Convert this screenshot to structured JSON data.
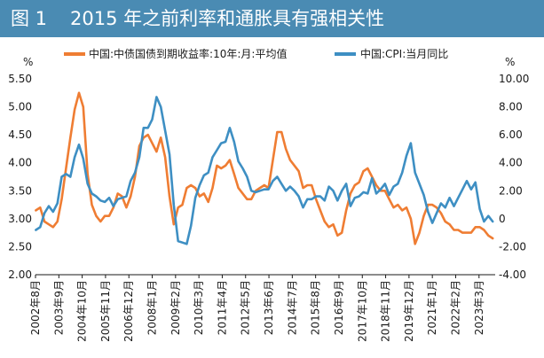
{
  "figure": {
    "label": "图 1",
    "title": "2015 年之前利率和通胀具有强相关性"
  },
  "colors": {
    "title_bg": "#4a8bb3",
    "bond": "#ef7d33",
    "cpi": "#3e8fc3",
    "axis": "#1a1a1a"
  },
  "chart_data": {
    "type": "line",
    "title": "2015 年之前利率和通胀具有强相关性",
    "left_axis": {
      "unit": "%",
      "range": [
        2.0,
        5.5
      ],
      "ticks": [
        "5.50",
        "5.00",
        "4.50",
        "4.00",
        "3.50",
        "3.00",
        "2.50",
        "2.00"
      ]
    },
    "right_axis": {
      "unit": "%",
      "range": [
        -4.0,
        10.0
      ],
      "ticks": [
        "10.00",
        "8.00",
        "6.00",
        "4.00",
        "2.00",
        "0",
        "-2.00",
        "-4.00"
      ]
    },
    "x_range": [
      2002.583,
      2023.917
    ],
    "x_tick_labels": [
      "2002年8月",
      "2003年9月",
      "2004年10月",
      "2005年11月",
      "2006年12月",
      "2008年1月",
      "2009年2月",
      "2010年3月",
      "2011年4月",
      "2012年5月",
      "2013年6月",
      "2014年7月",
      "2015年8月",
      "2016年9月",
      "2017年10月",
      "2018年11月",
      "2019年12月",
      "2021年1月",
      "2022年2月",
      "2023年3月"
    ],
    "x_tick_positions": [
      2002.583,
      2003.667,
      2004.75,
      2005.833,
      2006.917,
      2008.0,
      2009.083,
      2010.167,
      2011.25,
      2012.333,
      2013.417,
      2014.5,
      2015.583,
      2016.667,
      2017.75,
      2018.833,
      2019.917,
      2021.0,
      2022.083,
      2023.167
    ],
    "series": [
      {
        "name": "中国:中债国债到期收益率:10年:月:平均值",
        "axis": "left",
        "x": [
          2002.6,
          2002.8,
          2003.0,
          2003.2,
          2003.4,
          2003.6,
          2003.8,
          2004.0,
          2004.2,
          2004.4,
          2004.6,
          2004.8,
          2005.0,
          2005.2,
          2005.4,
          2005.6,
          2005.8,
          2006.0,
          2006.2,
          2006.4,
          2006.6,
          2006.8,
          2007.0,
          2007.2,
          2007.4,
          2007.6,
          2007.8,
          2008.0,
          2008.2,
          2008.4,
          2008.6,
          2008.8,
          2009.0,
          2009.2,
          2009.4,
          2009.6,
          2009.8,
          2010.0,
          2010.2,
          2010.4,
          2010.6,
          2010.8,
          2011.0,
          2011.2,
          2011.4,
          2011.6,
          2011.8,
          2012.0,
          2012.2,
          2012.4,
          2012.6,
          2012.8,
          2013.0,
          2013.2,
          2013.4,
          2013.6,
          2013.8,
          2014.0,
          2014.2,
          2014.4,
          2014.6,
          2014.8,
          2015.0,
          2015.2,
          2015.4,
          2015.6,
          2015.8,
          2016.0,
          2016.2,
          2016.4,
          2016.6,
          2016.8,
          2017.0,
          2017.2,
          2017.4,
          2017.6,
          2017.8,
          2018.0,
          2018.2,
          2018.4,
          2018.6,
          2018.8,
          2019.0,
          2019.2,
          2019.4,
          2019.6,
          2019.8,
          2020.0,
          2020.2,
          2020.4,
          2020.6,
          2020.8,
          2021.0,
          2021.2,
          2021.4,
          2021.6,
          2021.8,
          2022.0,
          2022.2,
          2022.4,
          2022.6,
          2022.8,
          2023.0,
          2023.2,
          2023.4,
          2023.6,
          2023.8
        ],
        "values": [
          3.15,
          3.2,
          2.95,
          2.9,
          2.85,
          2.95,
          3.35,
          3.9,
          4.45,
          4.95,
          5.25,
          5.0,
          3.8,
          3.25,
          3.05,
          2.95,
          3.05,
          3.05,
          3.2,
          3.45,
          3.4,
          3.2,
          3.4,
          3.75,
          4.3,
          4.45,
          4.5,
          4.35,
          4.2,
          4.45,
          4.1,
          3.4,
          2.9,
          3.2,
          3.25,
          3.55,
          3.6,
          3.55,
          3.4,
          3.45,
          3.3,
          3.55,
          3.95,
          3.9,
          3.95,
          4.05,
          3.8,
          3.55,
          3.45,
          3.35,
          3.35,
          3.5,
          3.55,
          3.6,
          3.55,
          4.05,
          4.55,
          4.55,
          4.25,
          4.05,
          3.95,
          3.85,
          3.55,
          3.6,
          3.6,
          3.35,
          3.15,
          2.95,
          2.85,
          2.9,
          2.7,
          2.75,
          3.15,
          3.45,
          3.6,
          3.65,
          3.85,
          3.9,
          3.75,
          3.6,
          3.5,
          3.5,
          3.35,
          3.2,
          3.25,
          3.15,
          3.2,
          3.0,
          2.55,
          2.75,
          3.05,
          3.25,
          3.25,
          3.2,
          3.1,
          2.95,
          2.9,
          2.8,
          2.8,
          2.75,
          2.75,
          2.75,
          2.85,
          2.85,
          2.8,
          2.7,
          2.65
        ]
      },
      {
        "name": "中国:CPI:当月同比",
        "axis": "right",
        "x": [
          2002.6,
          2002.8,
          2003.0,
          2003.2,
          2003.4,
          2003.6,
          2003.8,
          2004.0,
          2004.2,
          2004.4,
          2004.6,
          2004.8,
          2005.0,
          2005.2,
          2005.4,
          2005.6,
          2005.8,
          2006.0,
          2006.2,
          2006.4,
          2006.6,
          2006.8,
          2007.0,
          2007.2,
          2007.4,
          2007.6,
          2007.8,
          2008.0,
          2008.2,
          2008.4,
          2008.6,
          2008.8,
          2009.0,
          2009.2,
          2009.4,
          2009.6,
          2009.8,
          2010.0,
          2010.2,
          2010.4,
          2010.6,
          2010.8,
          2011.0,
          2011.2,
          2011.4,
          2011.6,
          2011.8,
          2012.0,
          2012.2,
          2012.4,
          2012.6,
          2012.8,
          2013.0,
          2013.2,
          2013.4,
          2013.6,
          2013.8,
          2014.0,
          2014.2,
          2014.4,
          2014.6,
          2014.8,
          2015.0,
          2015.2,
          2015.4,
          2015.6,
          2015.8,
          2016.0,
          2016.2,
          2016.4,
          2016.6,
          2016.8,
          2017.0,
          2017.2,
          2017.4,
          2017.6,
          2017.8,
          2018.0,
          2018.2,
          2018.4,
          2018.6,
          2018.8,
          2019.0,
          2019.2,
          2019.4,
          2019.6,
          2019.8,
          2020.0,
          2020.2,
          2020.4,
          2020.6,
          2020.8,
          2021.0,
          2021.2,
          2021.4,
          2021.6,
          2021.8,
          2022.0,
          2022.2,
          2022.4,
          2022.6,
          2022.8,
          2023.0,
          2023.2,
          2023.4,
          2023.6,
          2023.8
        ],
        "values": [
          -0.8,
          -0.6,
          0.4,
          0.9,
          0.5,
          1.1,
          3.0,
          3.2,
          3.0,
          4.4,
          5.3,
          4.3,
          2.5,
          1.8,
          1.6,
          1.3,
          1.2,
          1.5,
          0.9,
          1.4,
          1.5,
          1.6,
          2.7,
          3.3,
          4.4,
          6.5,
          6.5,
          7.1,
          8.7,
          8.0,
          6.3,
          4.6,
          1.0,
          -1.6,
          -1.7,
          -1.8,
          -0.5,
          1.5,
          2.4,
          3.1,
          3.3,
          4.4,
          4.9,
          5.4,
          5.5,
          6.5,
          5.5,
          4.1,
          3.6,
          3.0,
          2.0,
          1.9,
          2.0,
          2.1,
          2.1,
          2.7,
          3.0,
          2.5,
          2.0,
          2.3,
          2.0,
          1.6,
          0.8,
          1.4,
          1.4,
          1.6,
          1.6,
          1.3,
          2.3,
          2.0,
          1.3,
          2.0,
          2.5,
          0.9,
          1.5,
          1.6,
          1.9,
          1.8,
          2.9,
          1.8,
          2.1,
          2.5,
          1.7,
          2.3,
          2.5,
          3.3,
          4.5,
          5.4,
          3.3,
          2.5,
          1.7,
          0.5,
          -0.3,
          0.4,
          1.1,
          0.8,
          1.5,
          0.9,
          1.5,
          2.1,
          2.7,
          2.1,
          2.6,
          0.7,
          -0.2,
          0.2,
          -0.2
        ]
      }
    ]
  }
}
